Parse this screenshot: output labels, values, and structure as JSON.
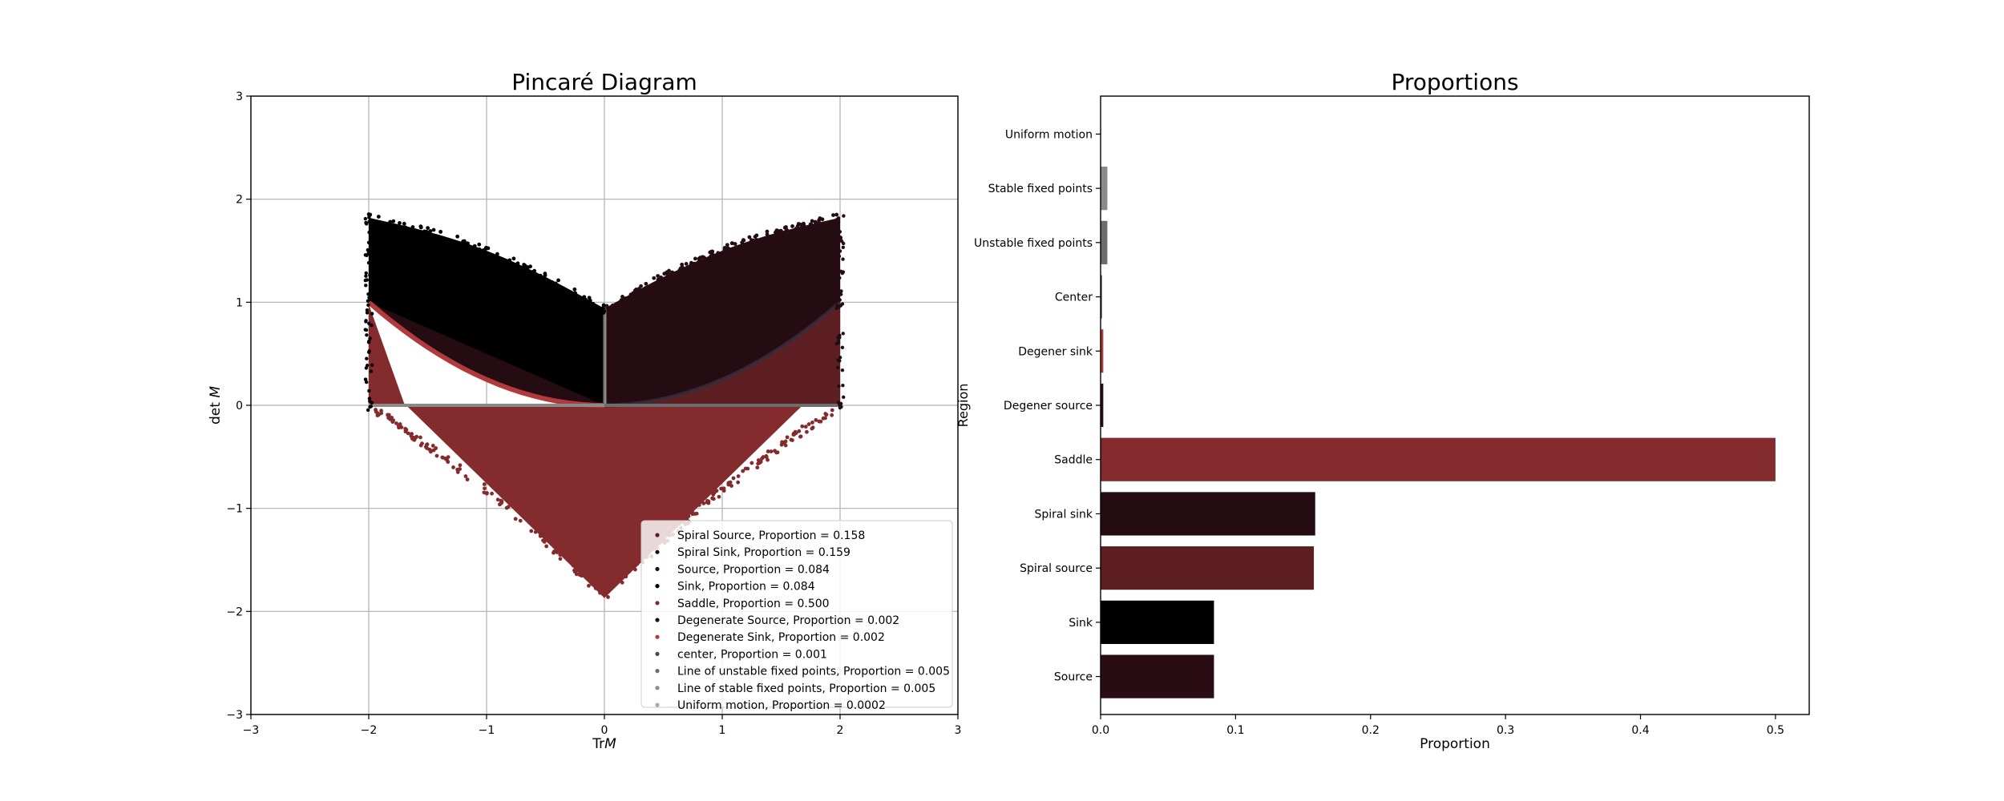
{
  "chart_data": [
    {
      "type": "scatter",
      "title": "Pincaré Diagram",
      "xlabel": "Tr M",
      "ylabel": "det M",
      "xlim": [
        -3,
        3
      ],
      "ylim": [
        -3,
        3
      ],
      "x_ticks": [
        -3,
        -2,
        -1,
        0,
        1,
        2,
        3
      ],
      "y_ticks": [
        -3,
        -2,
        -1,
        0,
        1,
        2,
        3
      ],
      "x_tick_labels": [
        "−3",
        "−2",
        "−1",
        "0",
        "1",
        "2",
        "3"
      ],
      "y_tick_labels": [
        "−3",
        "−2",
        "−1",
        "0",
        "1",
        "2",
        "3"
      ],
      "grid": true,
      "legend_position": "lower right",
      "series": [
        {
          "name": "Spiral Source, Proportion = 0.158",
          "region": "spiral_source",
          "color": "#5e1f22"
        },
        {
          "name": "Spiral Sink, Proportion = 0.159",
          "region": "spiral_sink",
          "color": "#240c12"
        },
        {
          "name": "Source, Proportion = 0.084",
          "region": "source",
          "color": "#2a0d14"
        },
        {
          "name": "Sink, Proportion = 0.084",
          "region": "sink",
          "color": "#000000"
        },
        {
          "name": "Saddle, Proportion = 0.500",
          "region": "saddle",
          "color": "#832b2d"
        },
        {
          "name": "Degenerate Source, Proportion = 0.002",
          "region": "degenerate_source",
          "color": "#2a0d14"
        },
        {
          "name": "Degenerate Sink, Proportion = 0.002",
          "region": "degenerate_sink",
          "color": "#b03a3c"
        },
        {
          "name": "center, Proportion = 0.001",
          "region": "center",
          "color": "#4a4a4a"
        },
        {
          "name": "Line of unstable fixed points, Proportion = 0.005",
          "region": "unstable_line",
          "color": "#6d6d6d"
        },
        {
          "name": "Line of stable fixed points, Proportion = 0.005",
          "region": "stable_line",
          "color": "#8a8a8a"
        },
        {
          "name": "Uniform motion, Proportion = 0.0002",
          "region": "uniform",
          "color": "#b5a5a5"
        }
      ]
    },
    {
      "type": "bar",
      "orientation": "horizontal",
      "title": "Proportions",
      "xlabel": "Proportion",
      "ylabel": "Region",
      "xlim": [
        0,
        0.525
      ],
      "x_ticks": [
        0.0,
        0.1,
        0.2,
        0.3,
        0.4,
        0.5
      ],
      "x_tick_labels": [
        "0.0",
        "0.1",
        "0.2",
        "0.3",
        "0.4",
        "0.5"
      ],
      "categories": [
        "Source",
        "Sink",
        "Spiral source",
        "Spiral sink",
        "Saddle",
        "Degener source",
        "Degener sink",
        "Center",
        "Unstable fixed points",
        "Stable fixed points",
        "Uniform motion"
      ],
      "values": [
        0.084,
        0.084,
        0.158,
        0.159,
        0.5,
        0.002,
        0.002,
        0.001,
        0.005,
        0.005,
        0.0002
      ],
      "colors": [
        "#2a0d14",
        "#000000",
        "#5e1f22",
        "#240c12",
        "#832b2d",
        "#2a0d14",
        "#b03a3c",
        "#4a4a4a",
        "#6d6d6d",
        "#8a8a8a",
        "#b5a5a5"
      ]
    }
  ]
}
